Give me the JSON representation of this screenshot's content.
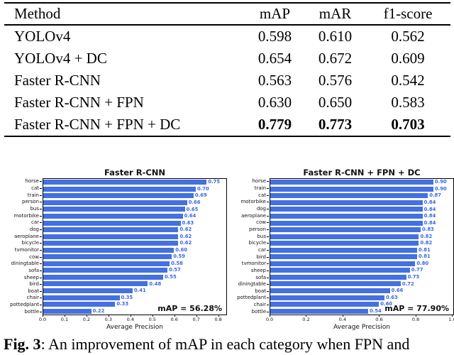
{
  "table": {
    "headers": [
      "Method",
      "mAP",
      "mAR",
      "f1-score"
    ],
    "rows": [
      {
        "method": "YOLOv4",
        "map": "0.598",
        "mar": "0.610",
        "f1": "0.562",
        "bold": false
      },
      {
        "method": "YOLOv4 + DC",
        "map": "0.654",
        "mar": "0.672",
        "f1": "0.609",
        "bold": false
      },
      {
        "method": "Faster R-CNN",
        "map": "0.563",
        "mar": "0.576",
        "f1": "0.542",
        "bold": false
      },
      {
        "method": "Faster R-CNN + FPN",
        "map": "0.630",
        "mar": "0.650",
        "f1": "0.583",
        "bold": false
      },
      {
        "method": "Faster R-CNN + FPN + DC",
        "map": "0.779",
        "mar": "0.773",
        "f1": "0.703",
        "bold": true
      }
    ]
  },
  "colors": {
    "bar": "#4470e1",
    "value_label": "#3a68de"
  },
  "chart_data": [
    {
      "type": "bar",
      "orientation": "horizontal",
      "title": "Faster R-CNN",
      "categories": [
        "horse",
        "cat",
        "train",
        "person",
        "bus",
        "motorbike",
        "car",
        "dog",
        "aeroplane",
        "bicycle",
        "tvmonitor",
        "cow",
        "diningtable",
        "sofa",
        "sheep",
        "bird",
        "boat",
        "chair",
        "pottedplant",
        "bottle"
      ],
      "values": [
        0.75,
        0.7,
        0.69,
        0.66,
        0.65,
        0.64,
        0.63,
        0.62,
        0.62,
        0.62,
        0.6,
        0.59,
        0.58,
        0.57,
        0.55,
        0.48,
        0.41,
        0.35,
        0.33,
        0.22
      ],
      "xlabel": "Average Precision",
      "xticks": [
        0.0,
        0.1,
        0.2,
        0.3,
        0.4,
        0.5,
        0.6,
        0.7,
        0.8
      ],
      "xtick_labels": [
        "0.0",
        "0.1",
        "0.2",
        "0.3",
        "0.4",
        "0.5",
        "0.6",
        "0.7",
        "0.8"
      ],
      "xlim": [
        0,
        0.84
      ],
      "grid": false,
      "annotation": "mAP = 56.28%"
    },
    {
      "type": "bar",
      "orientation": "horizontal",
      "title": "Faster R-CNN + FPN + DC",
      "categories": [
        "horse",
        "train",
        "cat",
        "motorbike",
        "dog",
        "aeroplane",
        "cow",
        "person",
        "bus",
        "bicycle",
        "car",
        "bird",
        "tvmonitor",
        "sheep",
        "sofa",
        "diningtable",
        "boat",
        "pottedplant",
        "chair",
        "bottle"
      ],
      "values": [
        0.9,
        0.9,
        0.87,
        0.84,
        0.84,
        0.84,
        0.84,
        0.83,
        0.82,
        0.82,
        0.81,
        0.81,
        0.8,
        0.77,
        0.75,
        0.72,
        0.66,
        0.63,
        0.6,
        0.54
      ],
      "xlabel": "Average Precision",
      "xticks": [
        0.0,
        0.2,
        0.4,
        0.6,
        0.8,
        1.0
      ],
      "xtick_labels": [
        "0.0",
        "0.2",
        "0.4",
        "0.6",
        "0.8",
        "1.0"
      ],
      "xlim": [
        0,
        1.01
      ],
      "grid": false,
      "annotation": "mAP = 77.90%"
    }
  ],
  "caption": {
    "label": "Fig. 3",
    "text": ": An improvement of mAP in each category when FPN and"
  }
}
